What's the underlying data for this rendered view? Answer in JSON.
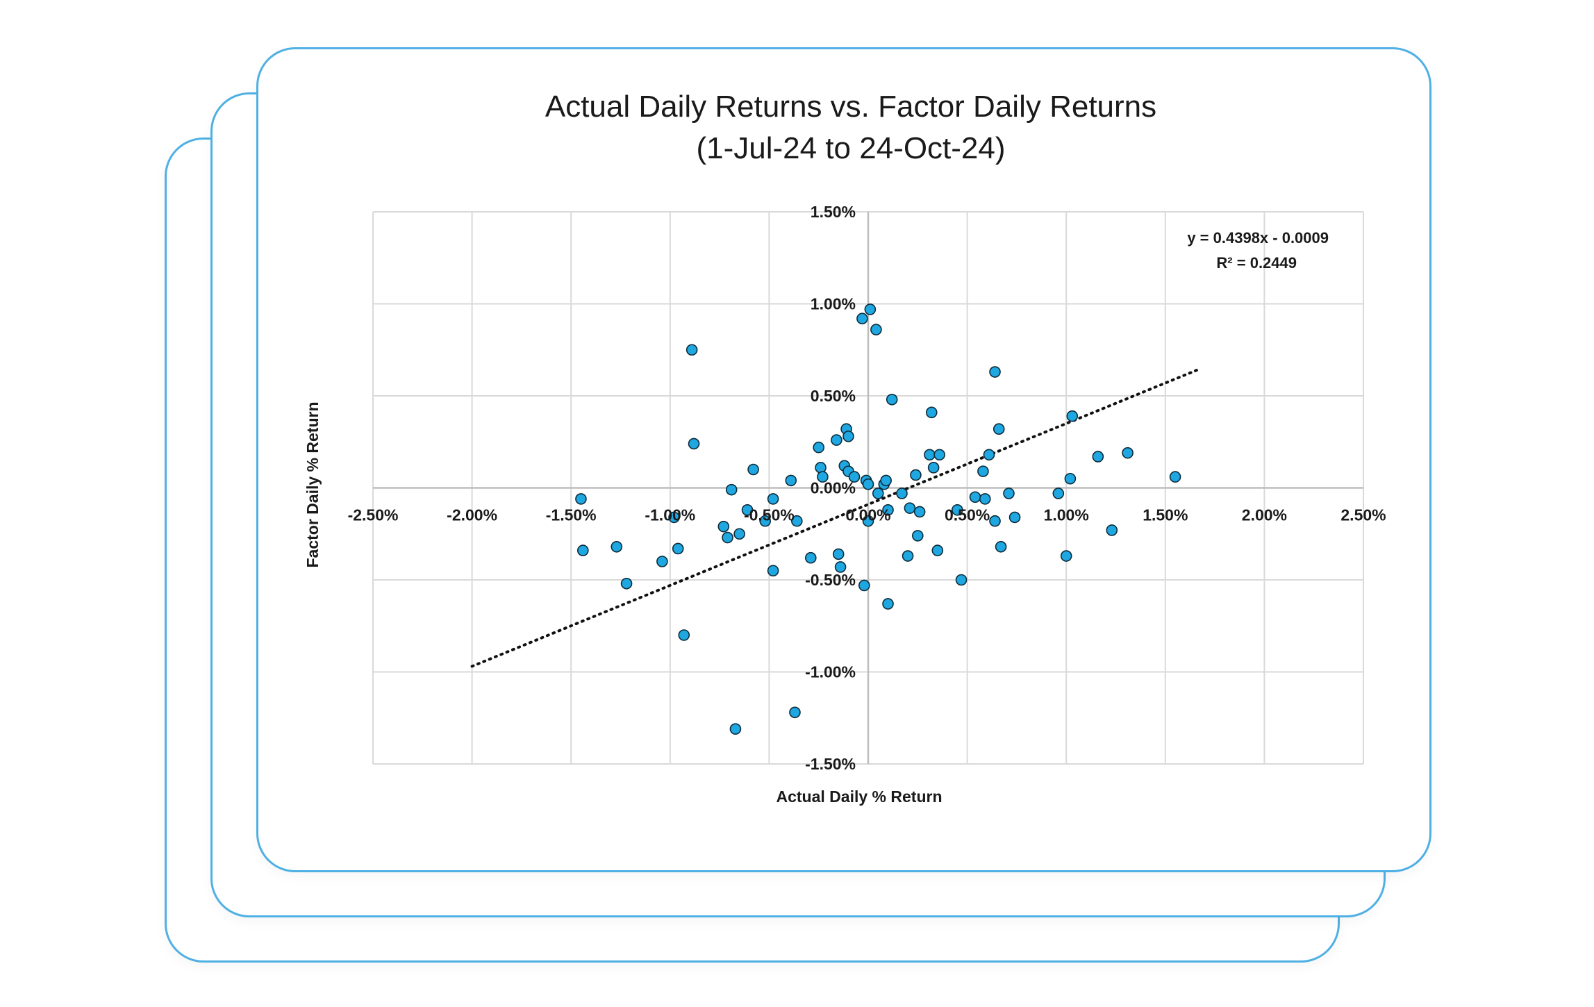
{
  "chart_data": {
    "type": "scatter",
    "title_lines": [
      "Actual Daily Returns vs. Factor Daily Returns",
      "(1-Jul-24 to 24-Oct-24)"
    ],
    "xlabel": "Actual Daily % Return",
    "ylabel": "Factor Daily % Return",
    "xlim": [
      -2.5,
      2.5
    ],
    "ylim": [
      -1.5,
      1.5
    ],
    "x_ticks": [
      -2.5,
      -2.0,
      -1.5,
      -1.0,
      -0.5,
      0.0,
      0.5,
      1.0,
      1.5,
      2.0,
      2.5
    ],
    "y_ticks": [
      -1.5,
      -1.0,
      -0.5,
      0.0,
      0.5,
      1.0,
      1.5
    ],
    "x_tick_labels": [
      "-2.50%",
      "-2.00%",
      "-1.50%",
      "-1.00%",
      "-0.50%",
      "0.00%",
      "0.50%",
      "1.00%",
      "1.50%",
      "2.00%",
      "2.50%"
    ],
    "y_tick_labels": [
      "-1.50%",
      "-1.00%",
      "-0.50%",
      "0.00%",
      "0.50%",
      "1.00%",
      "1.50%"
    ],
    "grid": true,
    "point_color": "#1ea7e0",
    "point_stroke": "#0d2b3a",
    "trendline": {
      "equation": "y = 0.4398x - 0.0009",
      "r_squared": "R² = 0.2449",
      "x_range": [
        -2.0,
        1.68
      ],
      "slope": 0.4398,
      "intercept": -0.09
    },
    "points": [
      [
        -1.45,
        -0.06
      ],
      [
        -1.44,
        -0.34
      ],
      [
        -1.27,
        -0.32
      ],
      [
        -1.22,
        -0.52
      ],
      [
        -1.04,
        -0.4
      ],
      [
        -0.98,
        -0.16
      ],
      [
        -0.96,
        -0.33
      ],
      [
        -0.93,
        -0.8
      ],
      [
        -0.89,
        0.75
      ],
      [
        -0.88,
        0.24
      ],
      [
        -0.73,
        -0.21
      ],
      [
        -0.71,
        -0.27
      ],
      [
        -0.69,
        -0.01
      ],
      [
        -0.67,
        -1.31
      ],
      [
        -0.65,
        -0.25
      ],
      [
        -0.61,
        -0.12
      ],
      [
        -0.58,
        0.1
      ],
      [
        -0.52,
        -0.18
      ],
      [
        -0.48,
        -0.06
      ],
      [
        -0.48,
        -0.45
      ],
      [
        -0.39,
        0.04
      ],
      [
        -0.37,
        -1.22
      ],
      [
        -0.36,
        -0.18
      ],
      [
        -0.29,
        -0.38
      ],
      [
        -0.25,
        0.22
      ],
      [
        -0.24,
        0.11
      ],
      [
        -0.23,
        0.06
      ],
      [
        -0.16,
        0.26
      ],
      [
        -0.15,
        -0.36
      ],
      [
        -0.14,
        -0.43
      ],
      [
        -0.12,
        0.12
      ],
      [
        -0.11,
        0.32
      ],
      [
        -0.1,
        0.28
      ],
      [
        -0.1,
        0.09
      ],
      [
        -0.07,
        0.06
      ],
      [
        -0.03,
        0.92
      ],
      [
        -0.02,
        -0.53
      ],
      [
        -0.01,
        0.04
      ],
      [
        0.0,
        0.02
      ],
      [
        0.0,
        -0.18
      ],
      [
        0.01,
        0.97
      ],
      [
        0.04,
        0.86
      ],
      [
        0.05,
        -0.03
      ],
      [
        0.08,
        0.02
      ],
      [
        0.09,
        0.04
      ],
      [
        0.1,
        -0.63
      ],
      [
        0.1,
        -0.12
      ],
      [
        0.12,
        0.48
      ],
      [
        0.17,
        -0.03
      ],
      [
        0.2,
        -0.37
      ],
      [
        0.21,
        -0.11
      ],
      [
        0.24,
        0.07
      ],
      [
        0.25,
        -0.26
      ],
      [
        0.26,
        -0.13
      ],
      [
        0.31,
        0.18
      ],
      [
        0.32,
        0.41
      ],
      [
        0.33,
        0.11
      ],
      [
        0.35,
        -0.34
      ],
      [
        0.36,
        0.18
      ],
      [
        0.47,
        -0.5
      ],
      [
        0.45,
        -0.12
      ],
      [
        0.54,
        -0.05
      ],
      [
        0.58,
        0.09
      ],
      [
        0.59,
        -0.06
      ],
      [
        0.61,
        0.18
      ],
      [
        0.64,
        0.63
      ],
      [
        0.64,
        -0.18
      ],
      [
        0.66,
        0.32
      ],
      [
        0.67,
        -0.32
      ],
      [
        0.71,
        -0.03
      ],
      [
        0.74,
        -0.16
      ],
      [
        0.96,
        -0.03
      ],
      [
        1.0,
        -0.37
      ],
      [
        1.02,
        0.05
      ],
      [
        1.03,
        0.39
      ],
      [
        1.16,
        0.17
      ],
      [
        1.23,
        -0.23
      ],
      [
        1.31,
        0.19
      ],
      [
        1.55,
        0.06
      ]
    ]
  }
}
